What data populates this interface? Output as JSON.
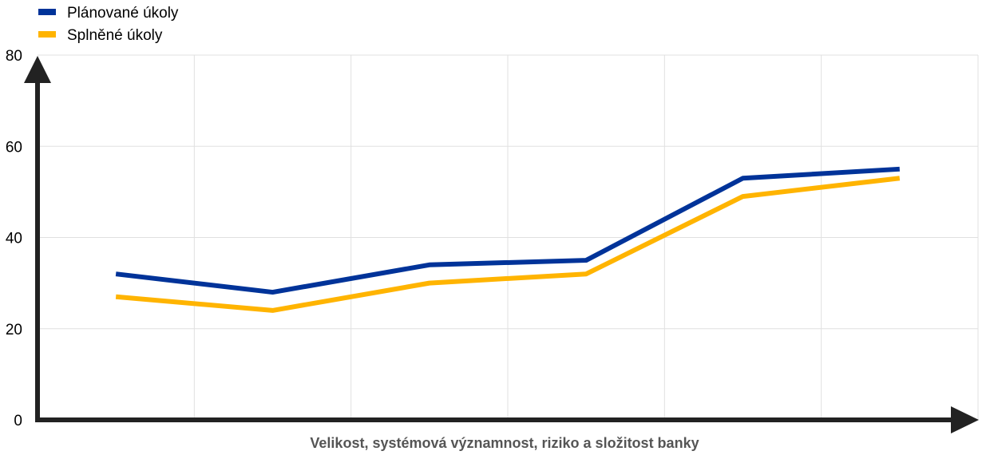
{
  "chart_data": {
    "type": "line",
    "title": "",
    "xlabel": "Velikost, systémová významnost, riziko a složitost banky",
    "ylabel": "",
    "x": [
      1,
      2,
      3,
      4,
      5,
      6
    ],
    "ylim": [
      0,
      80
    ],
    "yticks": [
      "0",
      "20",
      "40",
      "60",
      "80"
    ],
    "grid": true,
    "legend_position": "top-left",
    "series": [
      {
        "name": "Plánované úkoly",
        "color": "#003399",
        "values": [
          32,
          28,
          34,
          35,
          53,
          55
        ]
      },
      {
        "name": "Splněné úkoly",
        "color": "#FFB400",
        "values": [
          27,
          24,
          30,
          32,
          49,
          53
        ]
      }
    ]
  }
}
